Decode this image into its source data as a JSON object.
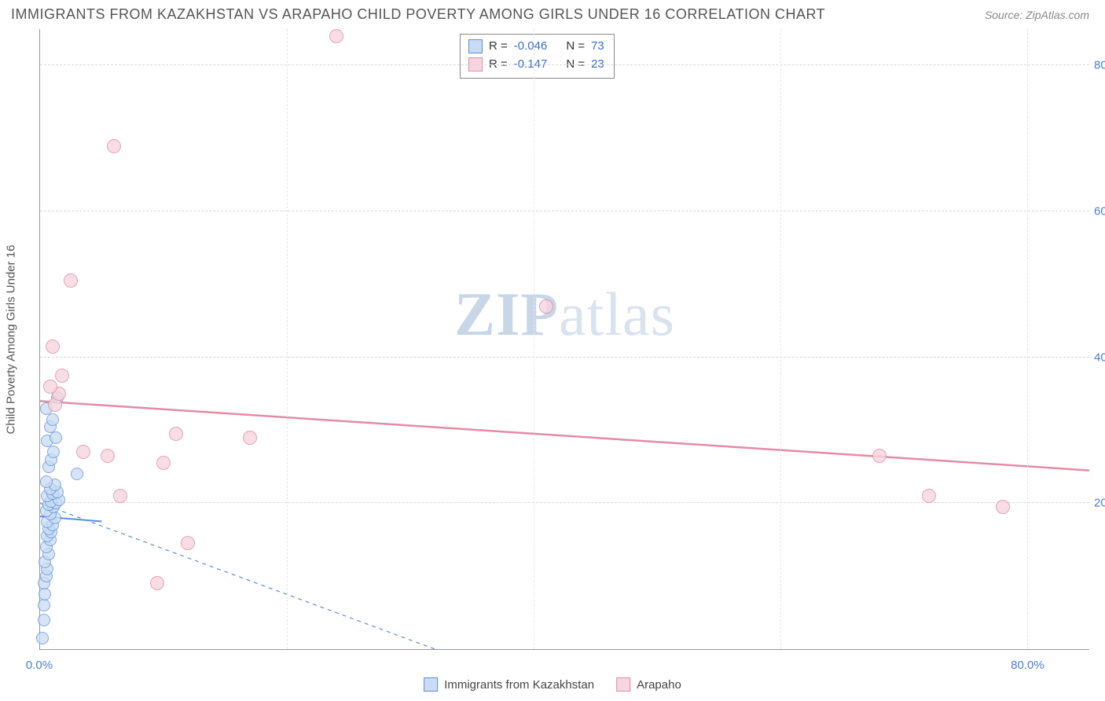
{
  "header": {
    "title": "IMMIGRANTS FROM KAZAKHSTAN VS ARAPAHO CHILD POVERTY AMONG GIRLS UNDER 16 CORRELATION CHART",
    "source": "Source: ZipAtlas.com"
  },
  "watermark": {
    "part1": "ZIP",
    "part2": "atlas"
  },
  "chart": {
    "type": "scatter",
    "ylabel": "Child Poverty Among Girls Under 16",
    "xlim": [
      0,
      85
    ],
    "ylim": [
      0,
      85
    ],
    "xtick_values": [
      0,
      80
    ],
    "xtick_labels": [
      "0.0%",
      "80.0%"
    ],
    "ytick_values": [
      20,
      40,
      60,
      80
    ],
    "ytick_labels": [
      "20.0%",
      "40.0%",
      "60.0%",
      "80.0%"
    ],
    "vgrid_values": [
      20,
      40,
      60,
      80
    ],
    "grid_color": "#d8d8d8",
    "axis_color": "#999999",
    "tick_label_color": "#4a7fd6",
    "background_color": "#ffffff",
    "series": [
      {
        "key": "kazakhstan",
        "label": "Immigrants from Kazakhstan",
        "fill": "#c9dcf4",
        "stroke": "#5a8fd6",
        "marker_radius": 8,
        "opacity": 0.75,
        "trend": {
          "x1": 0,
          "y1": 18.2,
          "x2": 5,
          "y2": 17.5,
          "dash": false,
          "width": 2
        },
        "trend_extend_dash": {
          "x1": 0,
          "y1": 20,
          "x2": 32,
          "y2": 0
        },
        "points": [
          [
            0.2,
            1.5
          ],
          [
            0.3,
            4
          ],
          [
            0.3,
            6
          ],
          [
            0.4,
            7.5
          ],
          [
            0.3,
            9
          ],
          [
            0.5,
            10
          ],
          [
            0.6,
            11
          ],
          [
            0.4,
            12
          ],
          [
            0.7,
            13
          ],
          [
            0.5,
            14
          ],
          [
            0.8,
            15
          ],
          [
            0.6,
            15.5
          ],
          [
            0.9,
            16
          ],
          [
            0.7,
            16.5
          ],
          [
            1.0,
            17
          ],
          [
            0.6,
            17.5
          ],
          [
            1.2,
            18
          ],
          [
            0.8,
            18.5
          ],
          [
            0.5,
            19
          ],
          [
            1.1,
            19.5
          ],
          [
            0.7,
            19.8
          ],
          [
            1.3,
            20
          ],
          [
            0.9,
            20.3
          ],
          [
            1.5,
            20.5
          ],
          [
            0.6,
            21
          ],
          [
            1.0,
            21.3
          ],
          [
            1.4,
            21.5
          ],
          [
            0.8,
            22
          ],
          [
            1.2,
            22.5
          ],
          [
            0.5,
            23
          ],
          [
            3.0,
            24
          ],
          [
            0.7,
            25
          ],
          [
            0.9,
            26
          ],
          [
            1.1,
            27
          ],
          [
            0.6,
            28.5
          ],
          [
            1.3,
            29
          ],
          [
            0.8,
            30.5
          ],
          [
            1.0,
            31.5
          ],
          [
            0.5,
            33
          ],
          [
            1.4,
            34.5
          ]
        ]
      },
      {
        "key": "arapaho",
        "label": "Arapaho",
        "fill": "#f6d5de",
        "stroke": "#e48ba5",
        "marker_radius": 9,
        "opacity": 0.8,
        "trend": {
          "x1": 0,
          "y1": 34,
          "x2": 85,
          "y2": 24.5,
          "dash": false,
          "width": 2.5
        },
        "points": [
          [
            1.2,
            33.5
          ],
          [
            1.5,
            35
          ],
          [
            0.8,
            36
          ],
          [
            1.8,
            37.5
          ],
          [
            1.0,
            41.5
          ],
          [
            2.5,
            50.5
          ],
          [
            6.0,
            69
          ],
          [
            24,
            84
          ],
          [
            3.5,
            27
          ],
          [
            5.5,
            26.5
          ],
          [
            11,
            29.5
          ],
          [
            17,
            29
          ],
          [
            10,
            25.5
          ],
          [
            6.5,
            21
          ],
          [
            12,
            14.5
          ],
          [
            9.5,
            9
          ],
          [
            41,
            47
          ],
          [
            68,
            26.5
          ],
          [
            72,
            21
          ],
          [
            78,
            19.5
          ]
        ]
      }
    ],
    "stat_legend": [
      {
        "swatch_fill": "#c9dcf4",
        "swatch_stroke": "#5a8fd6",
        "r_label": "R =",
        "r_value": "-0.046",
        "n_label": "N =",
        "n_value": "73"
      },
      {
        "swatch_fill": "#f6d5de",
        "swatch_stroke": "#e48ba5",
        "r_label": "R =",
        "r_value": " -0.147",
        "n_label": "N =",
        "n_value": "23"
      }
    ]
  }
}
